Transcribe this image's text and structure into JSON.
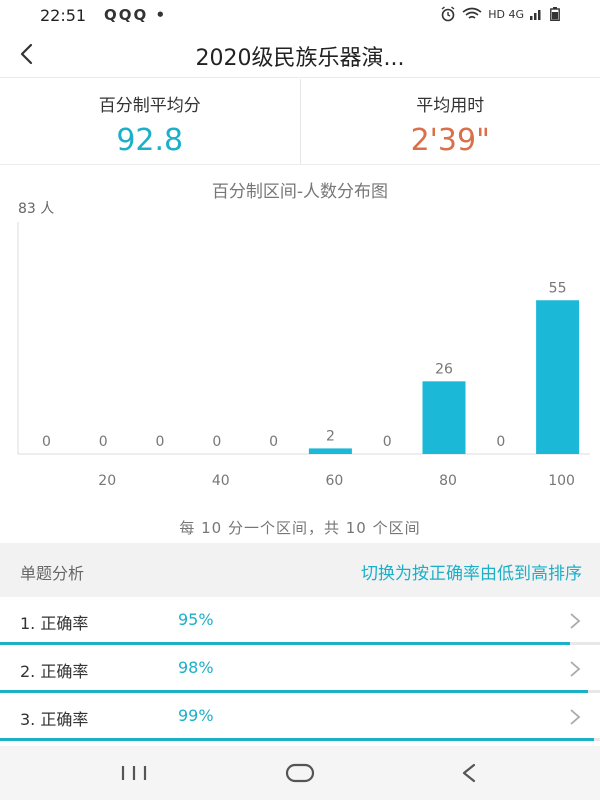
{
  "status": {
    "time": "22:51",
    "apps": "QQQ •",
    "network": "HD 4G"
  },
  "header": {
    "title": "2020级民族乐器演...",
    "back_icon": "chevron-left-icon"
  },
  "stats": {
    "avg_score_label": "百分制平均分",
    "avg_score_value": "92.8",
    "avg_time_label": "平均用时",
    "avg_time_value": "2'39\""
  },
  "chart_data": {
    "type": "bar",
    "title": "百分制区间-人数分布图",
    "ylabel": "83 人",
    "ylim": [
      0,
      83
    ],
    "categories": [
      "0-10",
      "10-20",
      "20-30",
      "30-40",
      "40-50",
      "50-60",
      "60-70",
      "70-80",
      "80-90",
      "90-100"
    ],
    "values": [
      0,
      0,
      0,
      0,
      0,
      2,
      0,
      26,
      0,
      55
    ],
    "tick_labels": [
      "20",
      "40",
      "60",
      "80",
      "100"
    ],
    "footnote": "每 10 分一个区间，共 10 个区间",
    "bar_color": "#1bb8d8"
  },
  "analysis": {
    "title": "单题分析",
    "sort_link": "切换为按正确率由低到高排序",
    "questions": [
      {
        "label": "1. 正确率",
        "value": "95%",
        "rate": 0.95
      },
      {
        "label": "2. 正确率",
        "value": "98%",
        "rate": 0.98
      },
      {
        "label": "3. 正确率",
        "value": "99%",
        "rate": 0.99
      }
    ]
  },
  "colors": {
    "accent": "#1bb0c8",
    "time_accent": "#d9704a"
  }
}
